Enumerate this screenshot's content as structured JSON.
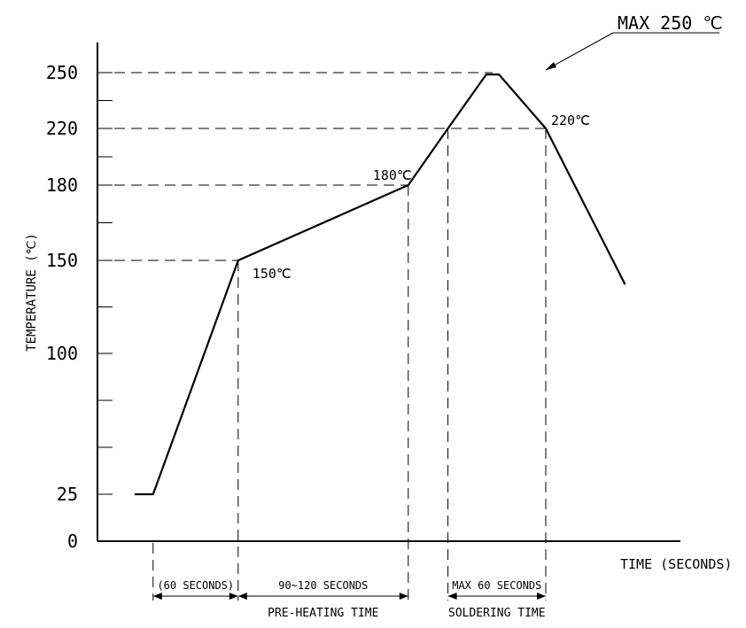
{
  "chart_data": {
    "type": "line",
    "title": "",
    "ylabel": "TEMPERATURE (℃)",
    "xlabel": "TIME (SECONDS)",
    "y_ticks": [
      {
        "value": 0,
        "label": "0"
      },
      {
        "value": 25,
        "label": "25"
      },
      {
        "value": 100,
        "label": "100"
      },
      {
        "value": 150,
        "label": "150"
      },
      {
        "value": 180,
        "label": "180"
      },
      {
        "value": 220,
        "label": "220"
      },
      {
        "value": 250,
        "label": "250"
      }
    ],
    "y_minor_ticks": [
      50,
      75,
      125,
      165,
      200,
      235
    ],
    "series": [
      {
        "points": [
          {
            "t": 0,
            "temp": 25
          },
          {
            "t": 13,
            "temp": 25
          },
          {
            "t": 73,
            "temp": 150
          },
          {
            "t": 193,
            "temp": 180
          },
          {
            "t": 221,
            "temp": 220
          },
          {
            "t": 248,
            "temp": 249
          },
          {
            "t": 257,
            "temp": 249
          },
          {
            "t": 290,
            "temp": 220
          },
          {
            "t": 346,
            "temp": 137
          }
        ]
      }
    ],
    "point_labels": [
      {
        "text": "150℃",
        "t": 73,
        "temp": 150
      },
      {
        "text": "180℃",
        "t": 193,
        "temp": 180
      },
      {
        "text": "220℃",
        "t": 290,
        "temp": 220
      }
    ],
    "peak_callout": "MAX 250 ℃",
    "intervals": [
      {
        "start": 13,
        "end": 73,
        "label": "(60 SECONDS)",
        "caption": ""
      },
      {
        "start": 73,
        "end": 193,
        "label": "90~120 SECONDS",
        "caption": "PRE-HEATING TIME"
      },
      {
        "start": 221,
        "end": 290,
        "label": "MAX 60 SECONDS",
        "caption": "SOLDERING TIME"
      }
    ],
    "ylim": [
      0,
      250
    ],
    "xlim": [
      0,
      346
    ],
    "grid": false,
    "legend": "none"
  }
}
